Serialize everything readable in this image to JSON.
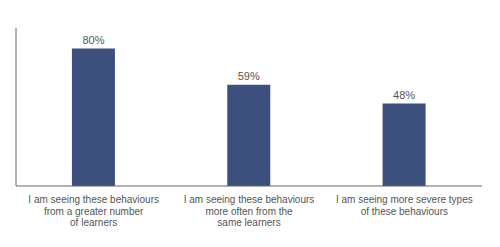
{
  "chart_data": {
    "type": "bar",
    "categories": [
      "I am seeing these behaviours\nfrom a greater number\nof learners",
      "I am seeing these behaviours\nmore often from the\nsame learners",
      "I am seeing more severe types\nof these behaviours"
    ],
    "values": [
      80,
      59,
      48
    ],
    "value_labels": [
      "80%",
      "59%",
      "48%"
    ],
    "data_labels": true,
    "color": "#3d4f7c",
    "ylim": [
      0,
      92
    ],
    "tick_labels": "x",
    "grid": false
  }
}
